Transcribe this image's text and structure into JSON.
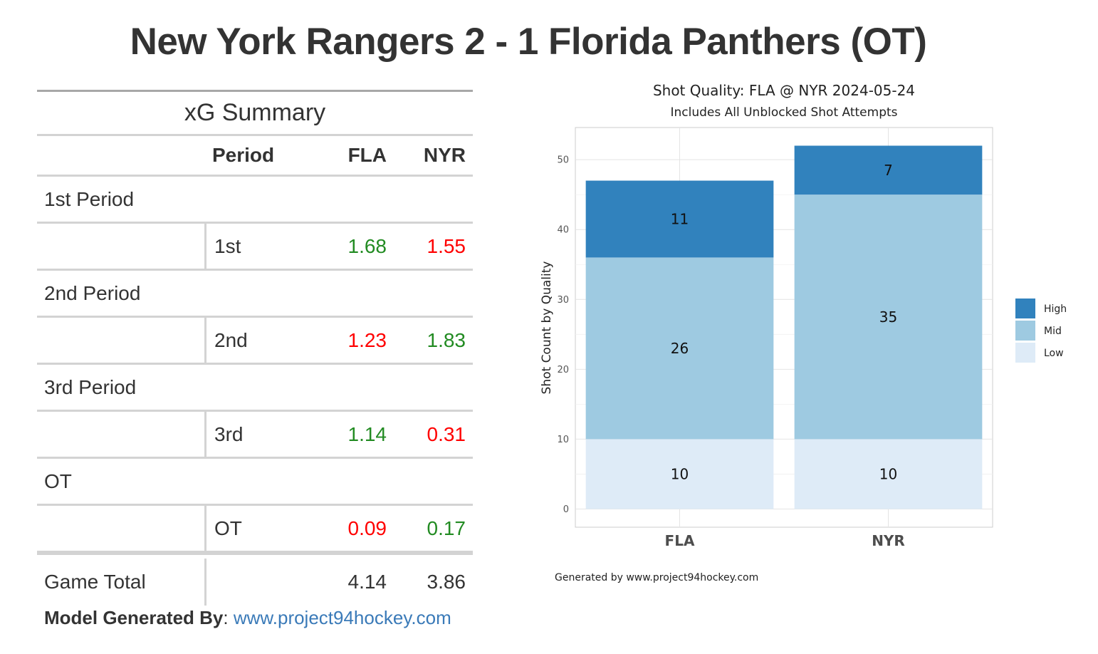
{
  "title": "New York Rangers 2 - 1 Florida Panthers (OT)",
  "table": {
    "caption": "xG Summary",
    "columns": {
      "period": "Period",
      "fla": "FLA",
      "nyr": "NYR"
    },
    "groups": [
      {
        "label": "1st Period",
        "period": "1st",
        "fla": "1.68",
        "nyr": "1.55",
        "fla_status": "pos",
        "nyr_status": "neg"
      },
      {
        "label": "2nd Period",
        "period": "2nd",
        "fla": "1.23",
        "nyr": "1.83",
        "fla_status": "neg",
        "nyr_status": "pos"
      },
      {
        "label": "3rd Period",
        "period": "3rd",
        "fla": "1.14",
        "nyr": "0.31",
        "fla_status": "pos",
        "nyr_status": "neg"
      },
      {
        "label": "OT",
        "period": "OT",
        "fla": "0.09",
        "nyr": "0.17",
        "fla_status": "neg",
        "nyr_status": "pos"
      }
    ],
    "total": {
      "label": "Game Total",
      "fla": "4.14",
      "nyr": "3.86"
    },
    "colors": {
      "positive": "#228b22",
      "negative": "#ff0000"
    }
  },
  "footnote": {
    "label": "Model Generated By",
    "sep": ": ",
    "link": "www.project94hockey.com"
  },
  "chart_data": {
    "type": "bar",
    "stacked": true,
    "title": "Shot Quality: FLA @ NYR 2024-05-24",
    "subtitle": "Includes All Unblocked Shot Attempts",
    "xlabel": "",
    "ylabel": "Shot Count by Quality",
    "categories": [
      "FLA",
      "NYR"
    ],
    "series": [
      {
        "name": "Low",
        "values": [
          10,
          10
        ],
        "color": "#deebf7"
      },
      {
        "name": "Mid",
        "values": [
          26,
          35
        ],
        "color": "#9ecae1"
      },
      {
        "name": "High",
        "values": [
          11,
          7
        ],
        "color": "#3182bd"
      }
    ],
    "legend_order": [
      "High",
      "Mid",
      "Low"
    ],
    "legend_position": "right",
    "yticks": [
      0,
      10,
      20,
      30,
      40,
      50
    ],
    "ylim": [
      -2.6,
      54.6
    ],
    "grid": true,
    "caption": "Generated by www.project94hockey.com"
  }
}
